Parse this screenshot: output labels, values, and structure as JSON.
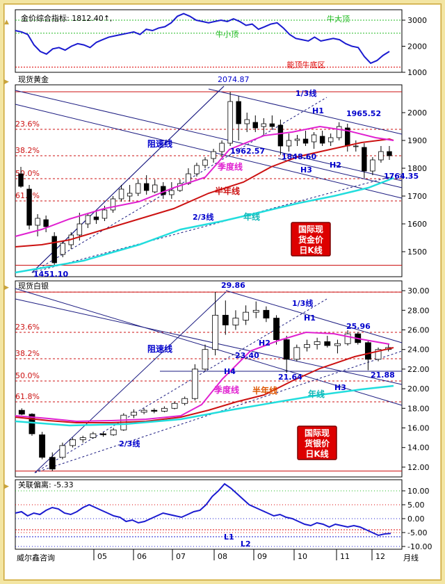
{
  "colors": {
    "ma_quarter": "#e020d0",
    "ma_half": "#cc1111",
    "ma_year": "#22dddd",
    "fib": "#cc1111",
    "channel": "#1a1a80",
    "candle_up": "#ffffff",
    "candle_down": "#000000",
    "label_blue": "#0000cc",
    "label_red": "#dd0000",
    "label_green": "#22bb22",
    "badge_bg": "#dd0000",
    "badge_text": "#ffffff"
  },
  "x_axis": {
    "labels": [
      "05",
      "06",
      "07",
      "08",
      "09",
      "10",
      "11",
      "12"
    ],
    "unit": "月线",
    "source": "威尔鑫咨询"
  },
  "fib_levels": [
    "23.6%",
    "38.2%",
    "50.0%",
    "61.8%"
  ],
  "chart_data": [
    {
      "type": "line",
      "title": "金价综合指标: 1812.40↑,",
      "yticks": [
        3000,
        2000,
        1000
      ],
      "ylim": [
        1000,
        3400
      ],
      "ref_lines": [
        {
          "label": "牛大顶",
          "value": 3000,
          "color": "#22bb22"
        },
        {
          "label": "牛小顶",
          "value": 2500,
          "color": "#22bb22"
        },
        {
          "label": "能顶牛底区",
          "value": 1200,
          "color": "#dd0000"
        }
      ],
      "series": [
        {
          "values": [
            2600,
            2550,
            2450,
            2050,
            1800,
            1700,
            1900,
            1950,
            1850,
            2000,
            2100,
            2050,
            1950,
            2150,
            2250,
            2350,
            2400,
            2450,
            2500,
            2550,
            2450,
            2650,
            2600,
            2700,
            2750,
            2900,
            3150,
            3250,
            3150,
            3000,
            2950,
            2900,
            2950,
            3000,
            2950,
            3050,
            2950,
            2800,
            2850,
            2650,
            2750,
            2850,
            2900,
            2700,
            2450,
            2300,
            2250,
            2200,
            2350,
            2200,
            2250,
            2300,
            2250,
            2100,
            2000,
            1950,
            1600,
            1350,
            1450,
            1650,
            1800
          ]
        }
      ]
    },
    {
      "type": "candlestick",
      "title": "现货黄金",
      "yticks": [
        1500,
        1600,
        1700,
        1800,
        1900,
        2000
      ],
      "ylim": [
        1410,
        2100
      ],
      "annotations": [
        "2074.87",
        "1965.52",
        "1962.57",
        "1848.60",
        "1764.35",
        "1451.10",
        "1/3线",
        "阻速线",
        "2/3线",
        "H1",
        "H2",
        "H3"
      ],
      "ma_labels": [
        "季度线",
        "半年线",
        "年线"
      ],
      "badge": [
        "国际现",
        "货金价",
        "日K线"
      ],
      "ohlc": [
        [
          1780,
          1805,
          1730,
          1735
        ],
        [
          1725,
          1740,
          1580,
          1595
        ],
        [
          1595,
          1635,
          1555,
          1620
        ],
        [
          1615,
          1630,
          1570,
          1590
        ],
        [
          1555,
          1570,
          1451,
          1460
        ],
        [
          1490,
          1540,
          1480,
          1530
        ],
        [
          1525,
          1570,
          1510,
          1560
        ],
        [
          1560,
          1640,
          1540,
          1600
        ],
        [
          1600,
          1640,
          1585,
          1630
        ],
        [
          1625,
          1650,
          1600,
          1615
        ],
        [
          1620,
          1665,
          1610,
          1650
        ],
        [
          1650,
          1700,
          1640,
          1690
        ],
        [
          1690,
          1740,
          1680,
          1725
        ],
        [
          1700,
          1740,
          1680,
          1710
        ],
        [
          1710,
          1760,
          1700,
          1745
        ],
        [
          1745,
          1775,
          1705,
          1720
        ],
        [
          1715,
          1760,
          1710,
          1740
        ],
        [
          1735,
          1750,
          1690,
          1705
        ],
        [
          1705,
          1750,
          1690,
          1720
        ],
        [
          1720,
          1760,
          1715,
          1745
        ],
        [
          1745,
          1800,
          1740,
          1780
        ],
        [
          1780,
          1820,
          1770,
          1810
        ],
        [
          1810,
          1840,
          1800,
          1830
        ],
        [
          1835,
          1870,
          1820,
          1860
        ],
        [
          1860,
          1900,
          1840,
          1890
        ],
        [
          1890,
          2074.87,
          1880,
          2040
        ],
        [
          2040,
          2060,
          1900,
          1960
        ],
        [
          1960,
          2000,
          1930,
          1975
        ],
        [
          1965,
          1990,
          1930,
          1945
        ],
        [
          1950,
          1980,
          1920,
          1960
        ],
        [
          1960,
          1990,
          1940,
          1950
        ],
        [
          1955,
          1975,
          1848.6,
          1880
        ],
        [
          1880,
          1925,
          1860,
          1900
        ],
        [
          1900,
          1920,
          1880,
          1905
        ],
        [
          1905,
          1935,
          1880,
          1890
        ],
        [
          1895,
          1930,
          1870,
          1920
        ],
        [
          1915,
          1935,
          1880,
          1890
        ],
        [
          1895,
          1925,
          1880,
          1910
        ],
        [
          1910,
          1965.52,
          1900,
          1950
        ],
        [
          1945,
          1960,
          1860,
          1880
        ],
        [
          1880,
          1900,
          1860,
          1880
        ],
        [
          1875,
          1890,
          1764.35,
          1790
        ],
        [
          1790,
          1840,
          1775,
          1830
        ],
        [
          1830,
          1880,
          1820,
          1860
        ],
        [
          1860,
          1880,
          1830,
          1845
        ]
      ]
    },
    {
      "type": "candlestick",
      "title": "现货白银",
      "yticks": [
        12,
        14,
        16,
        18,
        20,
        22,
        24,
        26,
        28,
        30
      ],
      "ylim": [
        11,
        31
      ],
      "annotations": [
        "29.86",
        "25.96",
        "23.40",
        "21.64",
        "21.88",
        "1/3线",
        "阻速线",
        "2/3线",
        "H1",
        "H2",
        "H3",
        "H4"
      ],
      "ma_labels": [
        "季度线",
        "半年线",
        "年线"
      ],
      "badge": [
        "国际现",
        "货银价",
        "日K线"
      ],
      "ohlc": [
        [
          17.8,
          18,
          17.3,
          17.4
        ],
        [
          17.4,
          17.5,
          15.2,
          15.4
        ],
        [
          15.3,
          15.6,
          12.8,
          13
        ],
        [
          13,
          13.5,
          11.6,
          11.8
        ],
        [
          13,
          14.5,
          12.8,
          14.2
        ],
        [
          14.2,
          15,
          14,
          14.8
        ],
        [
          14.8,
          15.2,
          14.5,
          15
        ],
        [
          15,
          15.6,
          14.9,
          15.4
        ],
        [
          15.4,
          15.6,
          15.1,
          15.3
        ],
        [
          15.3,
          16,
          15.2,
          15.8
        ],
        [
          15.8,
          17.5,
          15.7,
          17.3
        ],
        [
          17.3,
          17.9,
          17,
          17.6
        ],
        [
          17.6,
          18,
          17.4,
          17.8
        ],
        [
          17.8,
          18,
          17.5,
          17.7
        ],
        [
          17.7,
          18.2,
          17.6,
          18
        ],
        [
          18,
          18.7,
          17.9,
          18.5
        ],
        [
          18.5,
          19.2,
          18.3,
          19
        ],
        [
          19,
          22.5,
          18.8,
          22
        ],
        [
          22,
          24.5,
          21.8,
          24
        ],
        [
          24,
          29.86,
          23.4,
          27.5
        ],
        [
          27.5,
          29,
          25.5,
          26.5
        ],
        [
          26.5,
          28,
          26,
          27.2
        ],
        [
          27,
          28.5,
          26.5,
          27.8
        ],
        [
          27.8,
          28.9,
          27.2,
          28
        ],
        [
          28,
          28.4,
          26.8,
          27.2
        ],
        [
          27.2,
          27.5,
          24.5,
          25
        ],
        [
          25,
          25.4,
          21.64,
          23
        ],
        [
          23,
          24.5,
          22.8,
          24.2
        ],
        [
          24.2,
          25,
          23.8,
          24.5
        ],
        [
          24.5,
          25.2,
          24,
          24.8
        ],
        [
          24.8,
          25.4,
          24.2,
          24.4
        ],
        [
          24.4,
          25,
          23.6,
          24.6
        ],
        [
          24.6,
          25.96,
          24.4,
          25.6
        ],
        [
          25.6,
          25.8,
          24.5,
          24.7
        ],
        [
          24.7,
          24.9,
          21.88,
          23
        ],
        [
          23,
          24.2,
          22.8,
          24
        ],
        [
          24,
          24.6,
          23.8,
          24.2
        ]
      ]
    },
    {
      "type": "line",
      "title": "关联偏离: -5.33",
      "yticks": [
        10.0,
        5.0,
        0.0,
        -5.0,
        -10.0
      ],
      "ylim": [
        -11,
        14
      ],
      "lines": [
        "L1",
        "L2"
      ],
      "series": [
        {
          "values": [
            2,
            2.5,
            1,
            2,
            1.5,
            3,
            4,
            3.5,
            2,
            1.5,
            2.5,
            4,
            5,
            4,
            3,
            2,
            1,
            0.5,
            -1,
            -0.5,
            -1.5,
            -1,
            0,
            1,
            2,
            1.5,
            1,
            0.5,
            1.5,
            2.5,
            3,
            5,
            8,
            10,
            12.5,
            11,
            9,
            7,
            5,
            4,
            3,
            2,
            1,
            1.5,
            0.5,
            0,
            -1,
            -2,
            -2.5,
            -1.5,
            -2,
            -3,
            -2,
            -2.5,
            -3,
            -2.5,
            -3,
            -4,
            -5,
            -6,
            -5.5,
            -5.33
          ]
        }
      ]
    }
  ]
}
